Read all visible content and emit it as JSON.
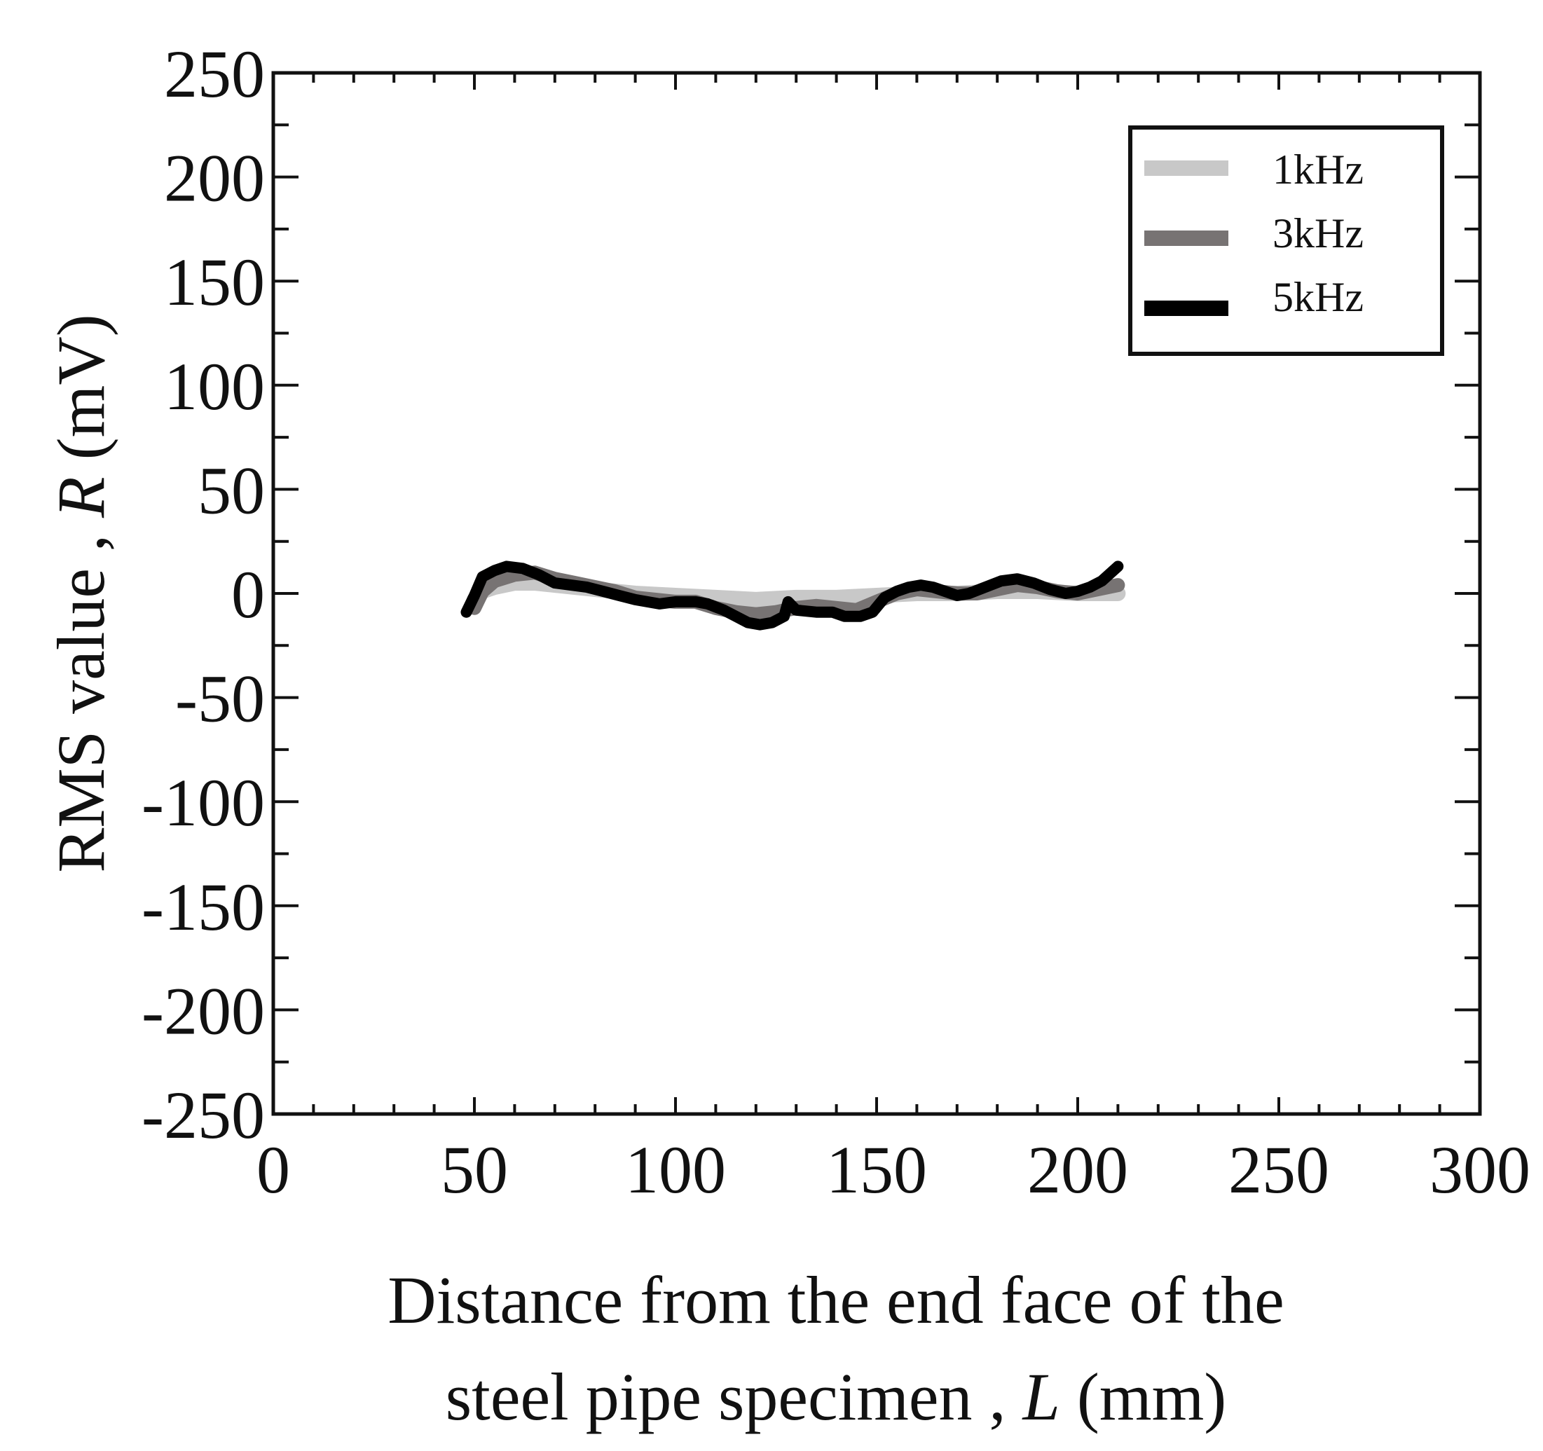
{
  "chart_data": {
    "type": "line",
    "xlabel": {
      "main": "Distance from the end face of the",
      "line2": "steel pipe specimen , ",
      "var": "L",
      "unit": " (mm)"
    },
    "ylabel": {
      "main": "RMS value , ",
      "var": "R",
      "unit": " (mV)"
    },
    "xlim": [
      0,
      300
    ],
    "ylim": [
      -250,
      250
    ],
    "xticks": [
      0,
      50,
      100,
      150,
      200,
      250,
      300
    ],
    "yticks": [
      250,
      200,
      150,
      100,
      50,
      0,
      -50,
      -100,
      -150,
      -200,
      -250
    ],
    "xticks_labels": [
      "0",
      "50",
      "100",
      "150",
      "200",
      "250",
      "300"
    ],
    "yticks_labels": [
      "250",
      "200",
      "150",
      "100",
      "50",
      "0",
      "-50",
      "-100",
      "-150",
      "-200",
      "-250"
    ],
    "x_minor_step": 10,
    "y_minor_step": 25,
    "grid": false,
    "legend_position": "top-right",
    "series": [
      {
        "name": "1kHz",
        "color": "#c8c8c8",
        "points": [
          [
            50,
            -3
          ],
          [
            52,
            1
          ],
          [
            55,
            3
          ],
          [
            60,
            5
          ],
          [
            65,
            5
          ],
          [
            70,
            4
          ],
          [
            80,
            2
          ],
          [
            90,
            0
          ],
          [
            100,
            -1
          ],
          [
            110,
            -2
          ],
          [
            120,
            -3
          ],
          [
            130,
            -2
          ],
          [
            140,
            -2
          ],
          [
            150,
            -1
          ],
          [
            160,
            0
          ],
          [
            170,
            0
          ],
          [
            180,
            1
          ],
          [
            190,
            1
          ],
          [
            200,
            0
          ],
          [
            205,
            0
          ],
          [
            210,
            0
          ]
        ]
      },
      {
        "name": "3kHz",
        "color": "#777373",
        "points": [
          [
            50,
            -7
          ],
          [
            52,
            1
          ],
          [
            55,
            6
          ],
          [
            60,
            9
          ],
          [
            65,
            10
          ],
          [
            70,
            7
          ],
          [
            75,
            5
          ],
          [
            80,
            3
          ],
          [
            85,
            1
          ],
          [
            90,
            -2
          ],
          [
            95,
            -3
          ],
          [
            100,
            -4
          ],
          [
            105,
            -4
          ],
          [
            110,
            -7
          ],
          [
            115,
            -9
          ],
          [
            120,
            -10
          ],
          [
            125,
            -9
          ],
          [
            130,
            -7
          ],
          [
            135,
            -6
          ],
          [
            140,
            -7
          ],
          [
            145,
            -8
          ],
          [
            150,
            -4
          ],
          [
            155,
            0
          ],
          [
            160,
            2
          ],
          [
            165,
            1
          ],
          [
            170,
            0
          ],
          [
            175,
            0
          ],
          [
            180,
            2
          ],
          [
            185,
            4
          ],
          [
            190,
            3
          ],
          [
            195,
            1
          ],
          [
            200,
            0
          ],
          [
            205,
            2
          ],
          [
            210,
            4
          ]
        ]
      },
      {
        "name": "5kHz",
        "color": "#000000",
        "points": [
          [
            48,
            -9
          ],
          [
            50,
            -1
          ],
          [
            52,
            8
          ],
          [
            55,
            11
          ],
          [
            58,
            13
          ],
          [
            62,
            12
          ],
          [
            66,
            9
          ],
          [
            70,
            5
          ],
          [
            74,
            4
          ],
          [
            78,
            3
          ],
          [
            82,
            1
          ],
          [
            86,
            -1
          ],
          [
            90,
            -3
          ],
          [
            93,
            -4
          ],
          [
            96,
            -5
          ],
          [
            100,
            -4
          ],
          [
            105,
            -4
          ],
          [
            108,
            -5
          ],
          [
            112,
            -8
          ],
          [
            115,
            -11
          ],
          [
            118,
            -14
          ],
          [
            121,
            -15
          ],
          [
            124,
            -14
          ],
          [
            127,
            -11
          ],
          [
            128,
            -4
          ],
          [
            130,
            -8
          ],
          [
            135,
            -9
          ],
          [
            139,
            -9
          ],
          [
            142,
            -11
          ],
          [
            146,
            -11
          ],
          [
            149,
            -9
          ],
          [
            152,
            -2
          ],
          [
            155,
            1
          ],
          [
            158,
            3
          ],
          [
            161,
            4
          ],
          [
            164,
            3
          ],
          [
            167,
            1
          ],
          [
            170,
            -1
          ],
          [
            173,
            0
          ],
          [
            177,
            3
          ],
          [
            181,
            6
          ],
          [
            185,
            7
          ],
          [
            189,
            5
          ],
          [
            193,
            2
          ],
          [
            197,
            0
          ],
          [
            200,
            1
          ],
          [
            203,
            3
          ],
          [
            206,
            6
          ],
          [
            210,
            13
          ]
        ]
      }
    ]
  }
}
